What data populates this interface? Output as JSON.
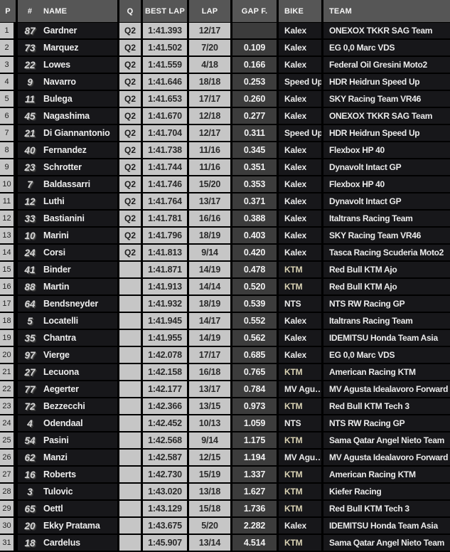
{
  "table": {
    "header": {
      "position": "P",
      "number": "#",
      "name": "NAME",
      "q": "Q",
      "best_lap": "BEST LAP",
      "lap": "LAP",
      "gap": "GAP F.",
      "bike": "BIKE",
      "team": "TEAM"
    }
  },
  "colors": {
    "header_bg": "#565656",
    "light_cell_bg": "#c6c6c6",
    "dark_row_bg": "#17171a",
    "gap_cell_bg": "#3c3c3c",
    "ktm_bike_text": "#d9d2b4"
  },
  "rows": [
    {
      "position": "1",
      "number": "87",
      "name": "Gardner",
      "q": "Q2",
      "best_lap": "1:41.393",
      "lap": "12/17",
      "gap": "",
      "bike": "Kalex",
      "team": "ONEXOX TKKR SAG Team"
    },
    {
      "position": "2",
      "number": "73",
      "name": "Marquez",
      "q": "Q2",
      "best_lap": "1:41.502",
      "lap": "7/20",
      "gap": "0.109",
      "bike": "Kalex",
      "team": "EG 0,0 Marc VDS"
    },
    {
      "position": "3",
      "number": "22",
      "name": "Lowes",
      "q": "Q2",
      "best_lap": "1:41.559",
      "lap": "4/18",
      "gap": "0.166",
      "bike": "Kalex",
      "team": "Federal Oil Gresini Moto2"
    },
    {
      "position": "4",
      "number": "9",
      "name": "Navarro",
      "q": "Q2",
      "best_lap": "1:41.646",
      "lap": "18/18",
      "gap": "0.253",
      "bike": "Speed Up",
      "team": "HDR Heidrun Speed Up"
    },
    {
      "position": "5",
      "number": "11",
      "name": "Bulega",
      "q": "Q2",
      "best_lap": "1:41.653",
      "lap": "17/17",
      "gap": "0.260",
      "bike": "Kalex",
      "team": "SKY Racing Team VR46"
    },
    {
      "position": "6",
      "number": "45",
      "name": "Nagashima",
      "q": "Q2",
      "best_lap": "1:41.670",
      "lap": "12/18",
      "gap": "0.277",
      "bike": "Kalex",
      "team": "ONEXOX TKKR SAG Team"
    },
    {
      "position": "7",
      "number": "21",
      "name": "Di Giannantonio",
      "q": "Q2",
      "best_lap": "1:41.704",
      "lap": "12/17",
      "gap": "0.311",
      "bike": "Speed Up",
      "team": "HDR Heidrun Speed Up"
    },
    {
      "position": "8",
      "number": "40",
      "name": "Fernandez",
      "q": "Q2",
      "best_lap": "1:41.738",
      "lap": "11/16",
      "gap": "0.345",
      "bike": "Kalex",
      "team": "Flexbox HP 40"
    },
    {
      "position": "9",
      "number": "23",
      "name": "Schrotter",
      "q": "Q2",
      "best_lap": "1:41.744",
      "lap": "11/16",
      "gap": "0.351",
      "bike": "Kalex",
      "team": "Dynavolt Intact GP"
    },
    {
      "position": "10",
      "number": "7",
      "name": "Baldassarri",
      "q": "Q2",
      "best_lap": "1:41.746",
      "lap": "15/20",
      "gap": "0.353",
      "bike": "Kalex",
      "team": "Flexbox HP 40"
    },
    {
      "position": "11",
      "number": "12",
      "name": "Luthi",
      "q": "Q2",
      "best_lap": "1:41.764",
      "lap": "13/17",
      "gap": "0.371",
      "bike": "Kalex",
      "team": "Dynavolt Intact GP"
    },
    {
      "position": "12",
      "number": "33",
      "name": "Bastianini",
      "q": "Q2",
      "best_lap": "1:41.781",
      "lap": "16/16",
      "gap": "0.388",
      "bike": "Kalex",
      "team": "Italtrans Racing Team"
    },
    {
      "position": "13",
      "number": "10",
      "name": "Marini",
      "q": "Q2",
      "best_lap": "1:41.796",
      "lap": "18/19",
      "gap": "0.403",
      "bike": "Kalex",
      "team": "SKY Racing Team VR46"
    },
    {
      "position": "14",
      "number": "24",
      "name": "Corsi",
      "q": "Q2",
      "best_lap": "1:41.813",
      "lap": "9/14",
      "gap": "0.420",
      "bike": "Kalex",
      "team": "Tasca Racing Scuderia Moto2"
    },
    {
      "position": "15",
      "number": "41",
      "name": "Binder",
      "q": "",
      "best_lap": "1:41.871",
      "lap": "14/19",
      "gap": "0.478",
      "bike": "KTM",
      "team": "Red Bull KTM Ajo"
    },
    {
      "position": "16",
      "number": "88",
      "name": "Martin",
      "q": "",
      "best_lap": "1:41.913",
      "lap": "14/14",
      "gap": "0.520",
      "bike": "KTM",
      "team": "Red Bull KTM Ajo"
    },
    {
      "position": "17",
      "number": "64",
      "name": "Bendsneyder",
      "q": "",
      "best_lap": "1:41.932",
      "lap": "18/19",
      "gap": "0.539",
      "bike": "NTS",
      "team": "NTS RW Racing GP"
    },
    {
      "position": "18",
      "number": "5",
      "name": "Locatelli",
      "q": "",
      "best_lap": "1:41.945",
      "lap": "14/17",
      "gap": "0.552",
      "bike": "Kalex",
      "team": "Italtrans Racing Team"
    },
    {
      "position": "19",
      "number": "35",
      "name": "Chantra",
      "q": "",
      "best_lap": "1:41.955",
      "lap": "14/19",
      "gap": "0.562",
      "bike": "Kalex",
      "team": "IDEMITSU Honda Team Asia"
    },
    {
      "position": "20",
      "number": "97",
      "name": "Vierge",
      "q": "",
      "best_lap": "1:42.078",
      "lap": "17/17",
      "gap": "0.685",
      "bike": "Kalex",
      "team": "EG 0,0 Marc VDS"
    },
    {
      "position": "21",
      "number": "27",
      "name": "Lecuona",
      "q": "",
      "best_lap": "1:42.158",
      "lap": "16/18",
      "gap": "0.765",
      "bike": "KTM",
      "team": "American Racing KTM"
    },
    {
      "position": "22",
      "number": "77",
      "name": "Aegerter",
      "q": "",
      "best_lap": "1:42.177",
      "lap": "13/17",
      "gap": "0.784",
      "bike": "MV Agu…",
      "team": "MV Agusta Idealavoro Forward"
    },
    {
      "position": "23",
      "number": "72",
      "name": "Bezzecchi",
      "q": "",
      "best_lap": "1:42.366",
      "lap": "13/15",
      "gap": "0.973",
      "bike": "KTM",
      "team": "Red Bull KTM Tech 3"
    },
    {
      "position": "24",
      "number": "4",
      "name": "Odendaal",
      "q": "",
      "best_lap": "1:42.452",
      "lap": "10/13",
      "gap": "1.059",
      "bike": "NTS",
      "team": "NTS RW Racing GP"
    },
    {
      "position": "25",
      "number": "54",
      "name": "Pasini",
      "q": "",
      "best_lap": "1:42.568",
      "lap": "9/14",
      "gap": "1.175",
      "bike": "KTM",
      "team": "Sama Qatar Angel Nieto Team"
    },
    {
      "position": "26",
      "number": "62",
      "name": "Manzi",
      "q": "",
      "best_lap": "1:42.587",
      "lap": "12/15",
      "gap": "1.194",
      "bike": "MV Agu…",
      "team": "MV Agusta Idealavoro Forward"
    },
    {
      "position": "27",
      "number": "16",
      "name": "Roberts",
      "q": "",
      "best_lap": "1:42.730",
      "lap": "15/19",
      "gap": "1.337",
      "bike": "KTM",
      "team": "American Racing KTM"
    },
    {
      "position": "28",
      "number": "3",
      "name": "Tulovic",
      "q": "",
      "best_lap": "1:43.020",
      "lap": "13/18",
      "gap": "1.627",
      "bike": "KTM",
      "team": "Kiefer Racing"
    },
    {
      "position": "29",
      "number": "65",
      "name": "Oettl",
      "q": "",
      "best_lap": "1:43.129",
      "lap": "15/18",
      "gap": "1.736",
      "bike": "KTM",
      "team": "Red Bull KTM Tech 3"
    },
    {
      "position": "30",
      "number": "20",
      "name": "Ekky Pratama",
      "q": "",
      "best_lap": "1:43.675",
      "lap": "5/20",
      "gap": "2.282",
      "bike": "Kalex",
      "team": "IDEMITSU Honda Team Asia"
    },
    {
      "position": "31",
      "number": "18",
      "name": "Cardelus",
      "q": "",
      "best_lap": "1:45.907",
      "lap": "13/14",
      "gap": "4.514",
      "bike": "KTM",
      "team": "Sama Qatar Angel Nieto Team"
    }
  ]
}
